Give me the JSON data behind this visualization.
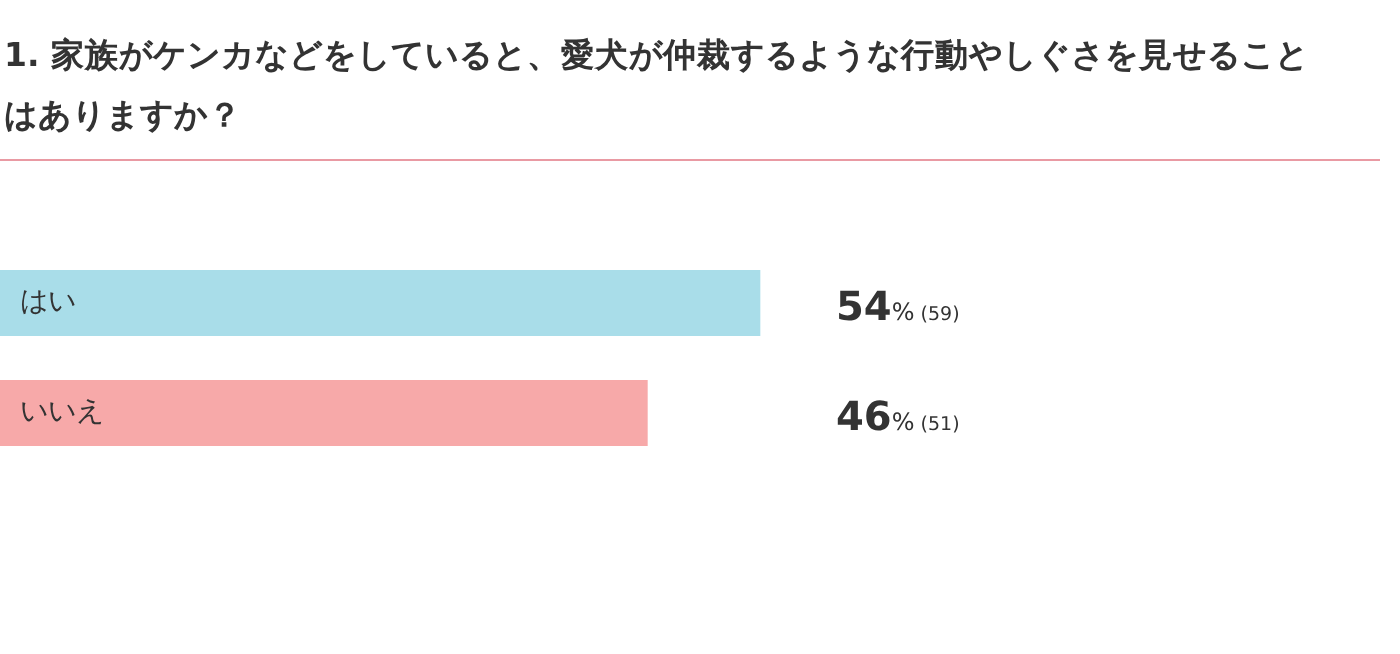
{
  "chart_data": {
    "type": "bar",
    "orientation": "horizontal",
    "title": "1. 家族がケンカなどをしていると、愛犬が仲裁するような行動やしぐさを見せることはありますか？",
    "categories": [
      "はい",
      "いいえ"
    ],
    "values": [
      54,
      46
    ],
    "colors": [
      "#a9dde9",
      "#f7a9a9"
    ],
    "value_labels": [
      "54% (59)",
      "46% (51)"
    ]
  }
}
